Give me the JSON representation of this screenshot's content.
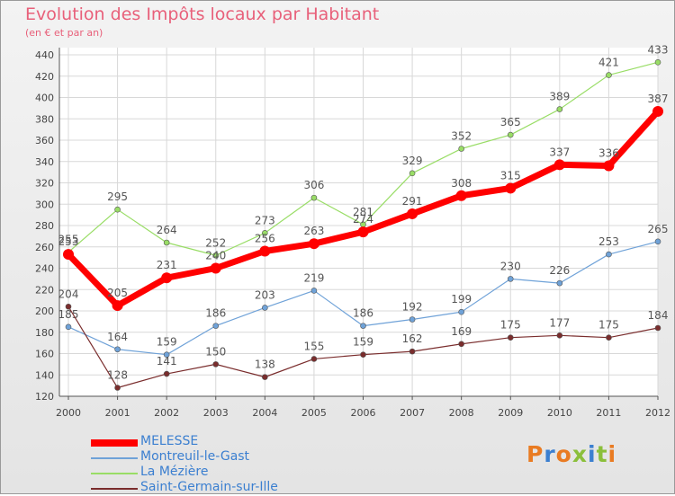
{
  "title": "Evolution des Impôts locaux par Habitant",
  "subtitle": "(en € et par an)",
  "brand": {
    "text": "Proxiti",
    "colors": [
      "#e97b22",
      "#3b7fd0",
      "#e97b22",
      "#8bbf3b",
      "#3b7fd0",
      "#8bbf3b",
      "#e97b22"
    ]
  },
  "chart_data": {
    "type": "line",
    "x": [
      "2000",
      "2001",
      "2002",
      "2003",
      "2004",
      "2005",
      "2006",
      "2007",
      "2008",
      "2009",
      "2010",
      "2011",
      "2012"
    ],
    "ylim": [
      120,
      440
    ],
    "yticks": [
      120,
      140,
      160,
      180,
      200,
      220,
      240,
      260,
      280,
      300,
      320,
      340,
      360,
      380,
      400,
      420,
      440
    ],
    "grid": true,
    "legend_position": "bottom-left",
    "series": [
      {
        "name": "MELESSE",
        "color": "#ff0000",
        "values": [
          253,
          205,
          231,
          240,
          256,
          263,
          274,
          291,
          308,
          315,
          337,
          336,
          387
        ]
      },
      {
        "name": "Montreuil-le-Gast",
        "color": "#6fa2d8",
        "values": [
          185,
          164,
          159,
          186,
          203,
          219,
          186,
          192,
          199,
          230,
          226,
          253,
          265
        ]
      },
      {
        "name": "La Mézière",
        "color": "#99dd66",
        "values": [
          255,
          295,
          264,
          252,
          273,
          306,
          281,
          329,
          352,
          365,
          389,
          421,
          433
        ]
      },
      {
        "name": "Saint-Germain-sur-Ille",
        "color": "#7a2d2d",
        "values": [
          204,
          128,
          141,
          150,
          138,
          155,
          159,
          162,
          169,
          175,
          177,
          175,
          184
        ]
      }
    ]
  }
}
